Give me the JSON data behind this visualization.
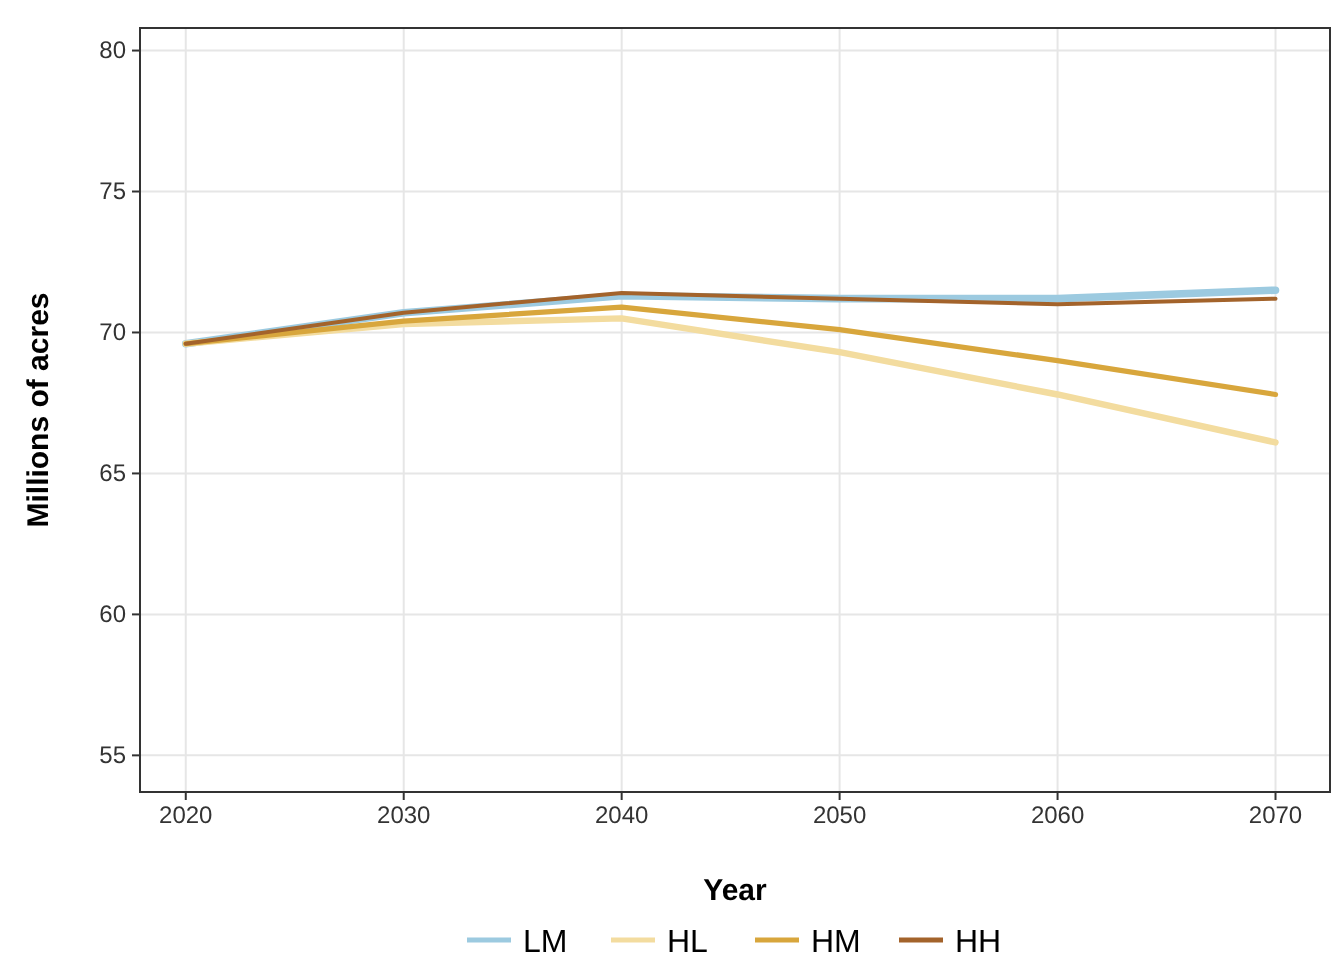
{
  "chart_data": {
    "type": "line",
    "xlabel": "Year",
    "ylabel": "Millions of acres",
    "x": [
      2020,
      2030,
      2040,
      2050,
      2060,
      2070
    ],
    "series": [
      {
        "name": "LM",
        "color": "#9ccae0",
        "values": [
          69.6,
          70.7,
          71.3,
          71.2,
          71.2,
          71.5
        ]
      },
      {
        "name": "HL",
        "color": "#f3dc9f",
        "values": [
          69.6,
          70.3,
          70.5,
          69.3,
          67.8,
          66.1
        ]
      },
      {
        "name": "HM",
        "color": "#d8a63c",
        "values": [
          69.6,
          70.4,
          70.9,
          70.1,
          69.0,
          67.8
        ]
      },
      {
        "name": "HH",
        "color": "#a3632b",
        "values": [
          69.6,
          70.7,
          71.4,
          71.2,
          71.0,
          71.2
        ]
      }
    ],
    "xlim": [
      2017.9,
      2072.5
    ],
    "ylim": [
      53.7,
      80.8
    ],
    "xticks": [
      2020,
      2030,
      2040,
      2050,
      2060,
      2070
    ],
    "yticks": [
      55,
      60,
      65,
      70,
      75,
      80
    ],
    "grid": true,
    "legend": "bottom",
    "marker": "none",
    "line_style": "solid"
  }
}
